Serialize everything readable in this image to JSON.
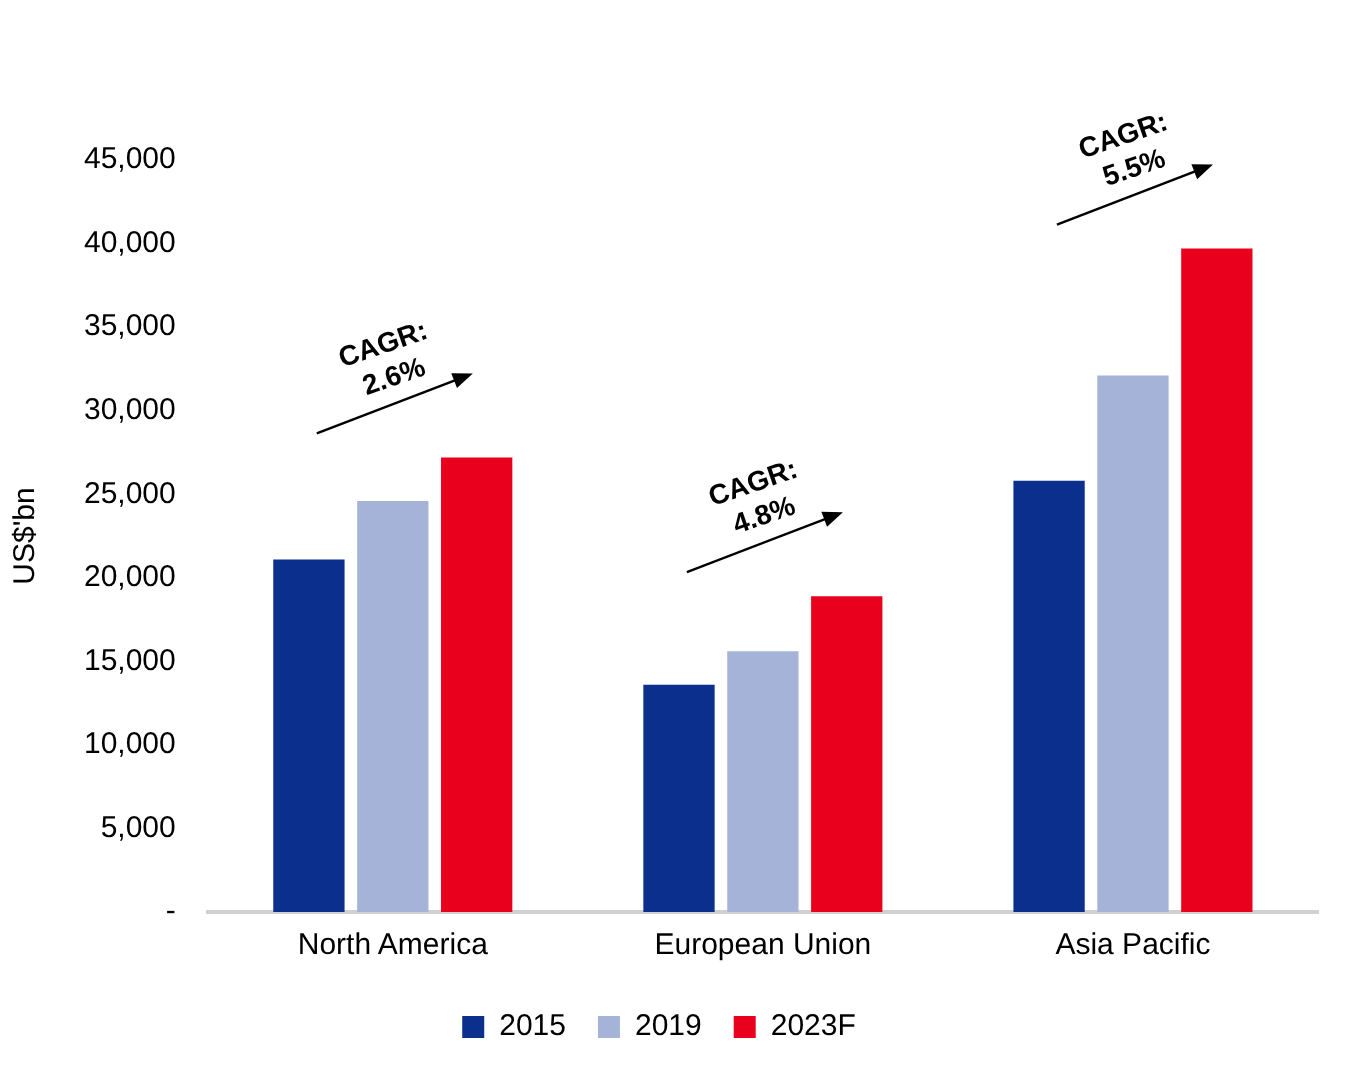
{
  "chart_data": {
    "type": "bar",
    "ylabel": "US$'bn",
    "categories": [
      "North America",
      "European Union",
      "Asia Pacific"
    ],
    "series": [
      {
        "name": "2015",
        "color": "#0a2f8c",
        "values": [
          21100,
          13600,
          25800
        ]
      },
      {
        "name": "2019",
        "color": "#a6b3d8",
        "values": [
          24600,
          15600,
          32100
        ]
      },
      {
        "name": "2023F",
        "color": "#e8001c",
        "values": [
          27200,
          18900,
          39700
        ]
      }
    ],
    "ylim": [
      0,
      45000
    ],
    "yticks": [
      {
        "value": 0,
        "label": "-"
      },
      {
        "value": 5000,
        "label": "5,000"
      },
      {
        "value": 10000,
        "label": "10,000"
      },
      {
        "value": 15000,
        "label": "15,000"
      },
      {
        "value": 20000,
        "label": "20,000"
      },
      {
        "value": 25000,
        "label": "25,000"
      },
      {
        "value": 30000,
        "label": "30,000"
      },
      {
        "value": 35000,
        "label": "35,000"
      },
      {
        "value": 40000,
        "label": "40,000"
      },
      {
        "value": 45000,
        "label": "45,000"
      }
    ],
    "grid": false,
    "legend": "bottom",
    "annotations": [
      "CAGR:\n2.6%",
      "CAGR:\n4.8%",
      "CAGR:\n5.5%"
    ]
  }
}
